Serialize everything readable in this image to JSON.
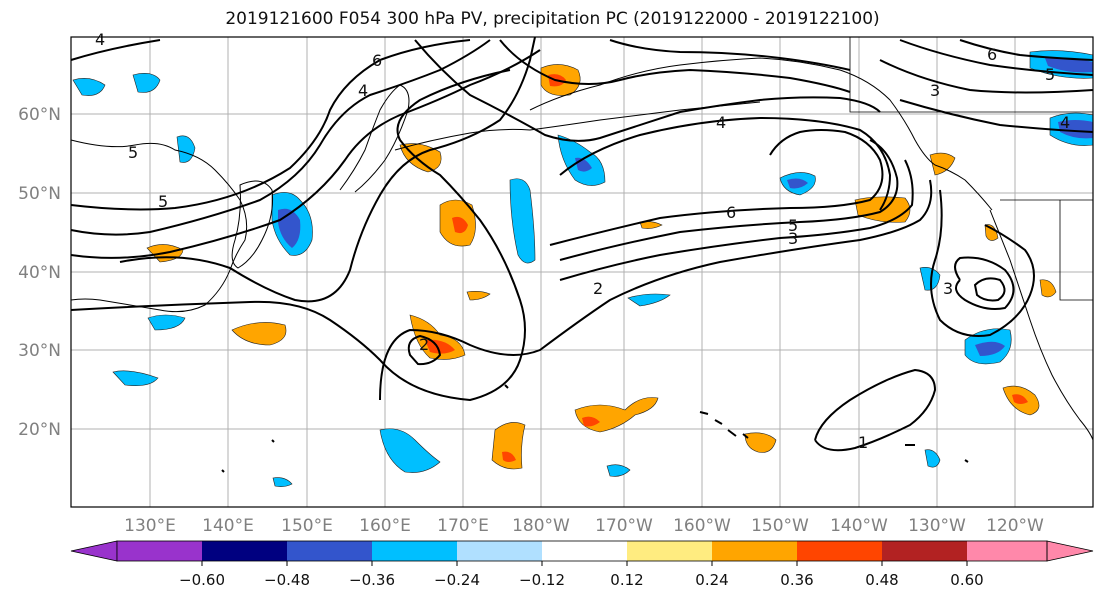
{
  "title": "2019121600 F054 300 hPa PV, precipitation PC (2019122000 - 2019122100)",
  "lat_labels": [
    "60°N",
    "50°N",
    "40°N",
    "30°N",
    "20°N"
  ],
  "lon_labels": [
    "130°E",
    "140°E",
    "150°E",
    "160°E",
    "170°E",
    "180°W",
    "170°W",
    "160°W",
    "150°W",
    "140°W",
    "130°W",
    "120°W"
  ],
  "colorbar": {
    "ticks": [
      "−0.60",
      "−0.48",
      "−0.36",
      "−0.24",
      "−0.12",
      "0.12",
      "0.24",
      "0.36",
      "0.48",
      "0.60"
    ],
    "colors": [
      "#9933cc",
      "#000080",
      "#3355cc",
      "#00bfff",
      "#b0e0ff",
      "#ffffff",
      "#ffec80",
      "#ffa500",
      "#ff4500",
      "#b22222",
      "#ff88aa"
    ]
  },
  "contour_labels": [
    "4",
    "6",
    "4",
    "5",
    "5",
    "6",
    "5",
    "3",
    "2",
    "2",
    "1",
    "3",
    "4",
    "3",
    "6",
    "5",
    "4"
  ],
  "colors": {
    "negative_light": "#00bfff",
    "negative_mid": "#3355cc",
    "positive_light": "#ffa500",
    "positive_mid": "#ff4500",
    "positive_edge": "#ffec80"
  }
}
